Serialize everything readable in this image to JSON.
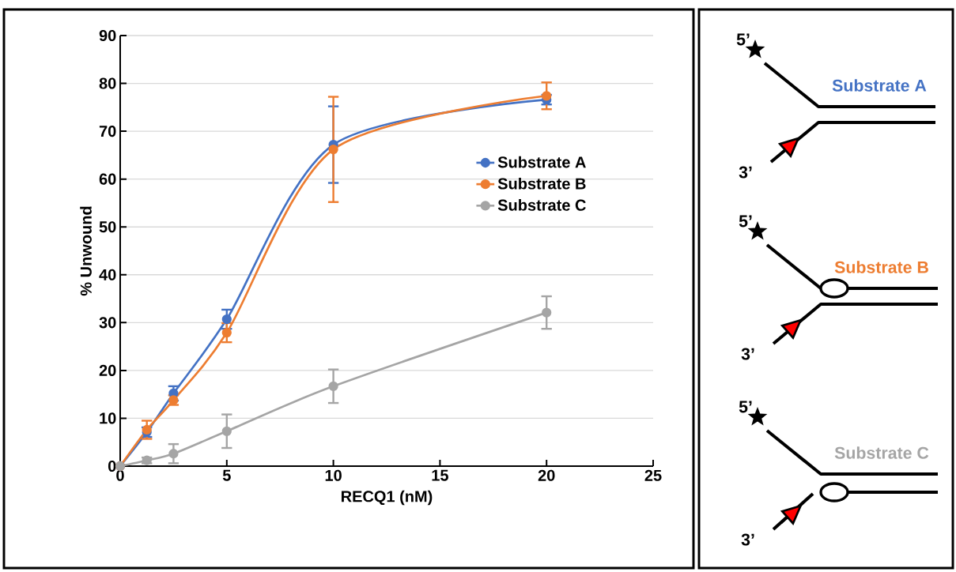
{
  "chart_data": [
    {
      "type": "line",
      "xlabel": "RECQ1 (nM)",
      "ylabel": "% Unwound",
      "xlim": [
        0,
        25
      ],
      "xticks": [
        0,
        5,
        10,
        15,
        20,
        25
      ],
      "ylim": [
        0,
        90
      ],
      "yticks": [
        0,
        10,
        20,
        30,
        40,
        50,
        60,
        70,
        80,
        90
      ],
      "grid": "y",
      "legend": "right",
      "marker": "circle",
      "line_style": "solid",
      "x": [
        0,
        1.25,
        2.5,
        5,
        10,
        20
      ],
      "series": [
        {
          "name": "Substrate A",
          "color": "#4472c4",
          "values": [
            0,
            7.1,
            15.2,
            30.7,
            67.2,
            76.6
          ],
          "errors": [
            null,
            1,
            1.5,
            2,
            8,
            1
          ]
        },
        {
          "name": "Substrate B",
          "color": "#ed7d31",
          "values": [
            0,
            7.6,
            13.8,
            27.9,
            66.2,
            77.4
          ],
          "errors": [
            null,
            1.9,
            1,
            2,
            11,
            2.8
          ]
        },
        {
          "name": "Substrate C",
          "color": "#a5a5a5",
          "values": [
            0,
            1.2,
            2.6,
            7.3,
            16.7,
            32.1
          ],
          "errors": [
            null,
            0.6,
            2,
            3.5,
            3.5,
            3.4
          ]
        }
      ]
    },
    {
      "type": "other",
      "annotations": [
        "5’",
        "Substrate A",
        "3’",
        "5’",
        "Substrate B",
        "3’",
        "5’",
        "Substrate C",
        "3’"
      ]
    }
  ]
}
